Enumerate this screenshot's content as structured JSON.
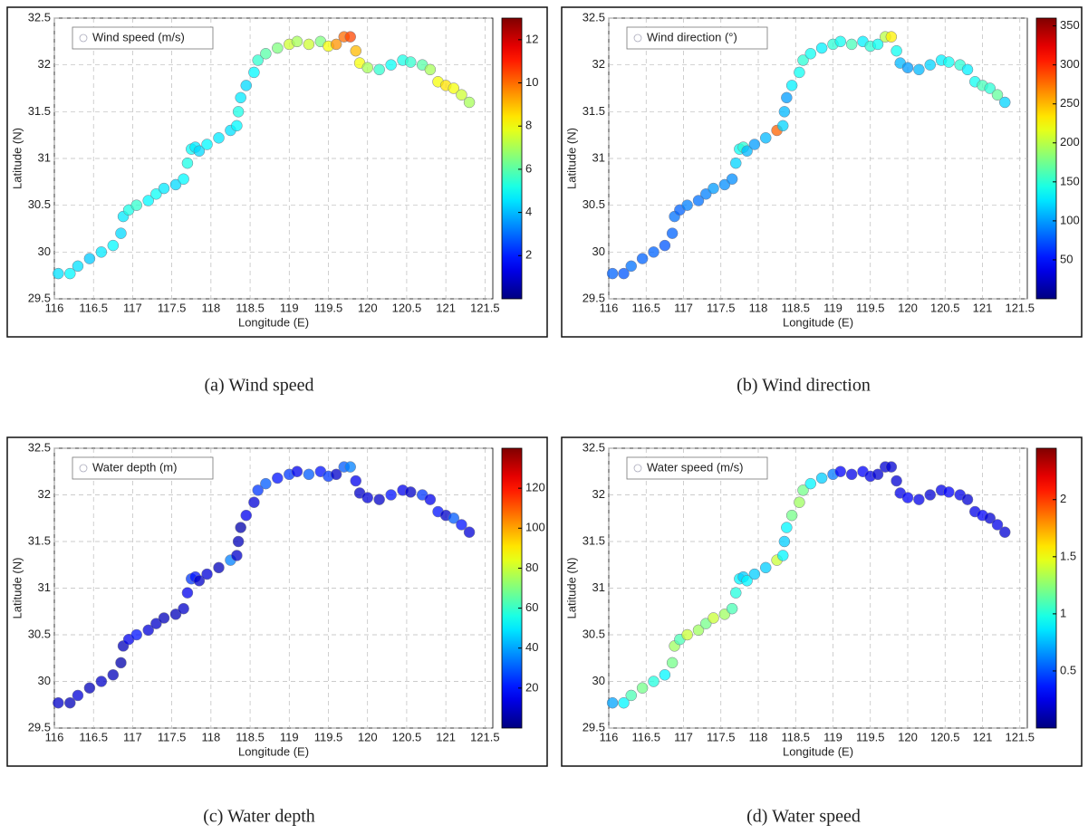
{
  "chart_data": [
    {
      "type": "scatter",
      "legend": "Wind speed (m/s)",
      "xlabel": "Longitude (E)",
      "ylabel": "Latitude (N)",
      "caption": "(a) Wind speed",
      "x": [
        116.05,
        116.2,
        116.3,
        116.45,
        116.6,
        116.75,
        116.85,
        116.88,
        116.95,
        117.05,
        117.2,
        117.3,
        117.4,
        117.55,
        117.65,
        117.7,
        117.75,
        117.8,
        117.85,
        117.95,
        118.1,
        118.25,
        118.33,
        118.35,
        118.38,
        118.45,
        118.55,
        118.6,
        118.7,
        118.85,
        119.0,
        119.1,
        119.25,
        119.4,
        119.5,
        119.6,
        119.7,
        119.78,
        119.85,
        119.9,
        120.0,
        120.15,
        120.3,
        120.45,
        120.55,
        120.7,
        120.8,
        120.9,
        121.0,
        121.1,
        121.2,
        121.3
      ],
      "y": [
        29.77,
        29.77,
        29.85,
        29.93,
        30.0,
        30.07,
        30.2,
        30.38,
        30.45,
        30.5,
        30.55,
        30.62,
        30.68,
        30.72,
        30.78,
        30.95,
        31.1,
        31.12,
        31.08,
        31.15,
        31.22,
        31.3,
        31.35,
        31.5,
        31.65,
        31.78,
        31.92,
        32.05,
        32.12,
        32.18,
        32.22,
        32.25,
        32.22,
        32.25,
        32.2,
        32.22,
        32.3,
        32.3,
        32.15,
        32.02,
        31.97,
        31.95,
        32.0,
        32.05,
        32.03,
        32.0,
        31.95,
        31.82,
        31.78,
        31.75,
        31.68,
        31.6
      ],
      "values": [
        4.5,
        4.8,
        4.5,
        4.2,
        4.6,
        4.8,
        4.4,
        4.6,
        5.2,
        5.5,
        4.8,
        5,
        4.6,
        4.4,
        4.8,
        5.2,
        5,
        4.6,
        4.4,
        4.8,
        4.6,
        4.5,
        4.8,
        5.2,
        4.6,
        4.4,
        4.8,
        5.5,
        6,
        6.5,
        7.5,
        7,
        7.5,
        6.5,
        8,
        9.5,
        10,
        10.5,
        9,
        8,
        7,
        5.5,
        5,
        5.2,
        5.5,
        6,
        7,
        8,
        8.5,
        8,
        7.5,
        7
      ],
      "colormap": "jet",
      "clim": [
        0,
        13
      ],
      "cticks": [
        2,
        4,
        6,
        8,
        10,
        12
      ],
      "xlim": [
        116,
        121.6
      ],
      "ylim": [
        29.5,
        32.5
      ],
      "xticks": [
        116,
        116.5,
        117,
        117.5,
        118,
        118.5,
        119,
        119.5,
        120,
        120.5,
        121,
        121.5
      ],
      "yticks": [
        29.5,
        30,
        30.5,
        31,
        31.5,
        32,
        32.5
      ],
      "grid": true
    },
    {
      "type": "scatter",
      "legend": "Wind direction (°)",
      "xlabel": "Longitude (E)",
      "ylabel": "Latitude (N)",
      "caption": "(b) Wind direction",
      "x": [
        116.05,
        116.2,
        116.3,
        116.45,
        116.6,
        116.75,
        116.85,
        116.88,
        116.95,
        117.05,
        117.2,
        117.3,
        117.4,
        117.55,
        117.65,
        117.7,
        117.75,
        117.8,
        117.85,
        117.95,
        118.1,
        118.25,
        118.33,
        118.35,
        118.38,
        118.45,
        118.55,
        118.6,
        118.7,
        118.85,
        119.0,
        119.1,
        119.25,
        119.4,
        119.5,
        119.6,
        119.7,
        119.78,
        119.85,
        119.9,
        120.0,
        120.15,
        120.3,
        120.45,
        120.55,
        120.7,
        120.8,
        120.9,
        121.0,
        121.1,
        121.2,
        121.3
      ],
      "y": [
        29.77,
        29.77,
        29.85,
        29.93,
        30.0,
        30.07,
        30.2,
        30.38,
        30.45,
        30.5,
        30.55,
        30.62,
        30.68,
        30.72,
        30.78,
        30.95,
        31.1,
        31.12,
        31.08,
        31.15,
        31.22,
        31.3,
        31.35,
        31.5,
        31.65,
        31.78,
        31.92,
        32.05,
        32.12,
        32.18,
        32.22,
        32.25,
        32.22,
        32.25,
        32.2,
        32.22,
        32.3,
        32.3,
        32.15,
        32.02,
        31.97,
        31.95,
        32.0,
        32.05,
        32.03,
        32.0,
        31.95,
        31.82,
        31.78,
        31.75,
        31.68,
        31.6
      ],
      "values": [
        80,
        75,
        85,
        80,
        80,
        75,
        80,
        85,
        80,
        90,
        85,
        90,
        100,
        95,
        95,
        120,
        140,
        150,
        110,
        100,
        110,
        280,
        120,
        110,
        100,
        130,
        140,
        150,
        140,
        130,
        150,
        140,
        160,
        130,
        150,
        140,
        200,
        230,
        140,
        110,
        100,
        110,
        120,
        130,
        140,
        150,
        130,
        140,
        160,
        150,
        170,
        120
      ],
      "colormap": "jet",
      "clim": [
        0,
        360
      ],
      "cticks": [
        50,
        100,
        150,
        200,
        250,
        300,
        350
      ],
      "xlim": [
        116,
        121.6
      ],
      "ylim": [
        29.5,
        32.5
      ],
      "xticks": [
        116,
        116.5,
        117,
        117.5,
        118,
        118.5,
        119,
        119.5,
        120,
        120.5,
        121,
        121.5
      ],
      "yticks": [
        29.5,
        30,
        30.5,
        31,
        31.5,
        32,
        32.5
      ],
      "grid": true
    },
    {
      "type": "scatter",
      "legend": "Water depth (m)",
      "xlabel": "Longitude (E)",
      "ylabel": "Latitude (N)",
      "caption": "(c) Water depth",
      "x": [
        116.05,
        116.2,
        116.3,
        116.45,
        116.6,
        116.75,
        116.85,
        116.88,
        116.95,
        117.05,
        117.2,
        117.3,
        117.4,
        117.55,
        117.65,
        117.7,
        117.75,
        117.8,
        117.85,
        117.95,
        118.1,
        118.25,
        118.33,
        118.35,
        118.38,
        118.45,
        118.55,
        118.6,
        118.7,
        118.85,
        119.0,
        119.1,
        119.25,
        119.4,
        119.5,
        119.6,
        119.7,
        119.78,
        119.85,
        119.9,
        120.0,
        120.15,
        120.3,
        120.45,
        120.55,
        120.7,
        120.8,
        120.9,
        121.0,
        121.1,
        121.2,
        121.3
      ],
      "y": [
        29.77,
        29.77,
        29.85,
        29.93,
        30.0,
        30.07,
        30.2,
        30.38,
        30.45,
        30.5,
        30.55,
        30.62,
        30.68,
        30.72,
        30.78,
        30.95,
        31.1,
        31.12,
        31.08,
        31.15,
        31.22,
        31.3,
        31.35,
        31.5,
        31.65,
        31.78,
        31.92,
        32.05,
        32.12,
        32.18,
        32.22,
        32.25,
        32.22,
        32.25,
        32.2,
        32.22,
        32.3,
        32.3,
        32.15,
        32.02,
        31.97,
        31.95,
        32.0,
        32.05,
        32.03,
        32.0,
        31.95,
        31.82,
        31.78,
        31.75,
        31.68,
        31.6
      ],
      "values": [
        10,
        8,
        12,
        8,
        10,
        8,
        6,
        8,
        15,
        20,
        12,
        10,
        8,
        8,
        10,
        15,
        25,
        20,
        10,
        12,
        8,
        35,
        10,
        8,
        6,
        15,
        12,
        25,
        30,
        20,
        25,
        15,
        30,
        20,
        25,
        10,
        30,
        35,
        15,
        10,
        12,
        10,
        20,
        15,
        10,
        25,
        15,
        20,
        10,
        30,
        20,
        12
      ],
      "colormap": "jet",
      "clim": [
        0,
        140
      ],
      "cticks": [
        20,
        40,
        60,
        80,
        100,
        120
      ],
      "xlim": [
        116,
        121.6
      ],
      "ylim": [
        29.5,
        32.5
      ],
      "xticks": [
        116,
        116.5,
        117,
        117.5,
        118,
        118.5,
        119,
        119.5,
        120,
        120.5,
        121,
        121.5
      ],
      "yticks": [
        29.5,
        30,
        30.5,
        31,
        31.5,
        32,
        32.5
      ],
      "grid": true
    },
    {
      "type": "scatter",
      "legend": "Water speed (m/s)",
      "xlabel": "Longitude (E)",
      "ylabel": "Latitude (N)",
      "caption": "(d) Water speed",
      "x": [
        116.05,
        116.2,
        116.3,
        116.45,
        116.6,
        116.75,
        116.85,
        116.88,
        116.95,
        117.05,
        117.2,
        117.3,
        117.4,
        117.55,
        117.65,
        117.7,
        117.75,
        117.8,
        117.85,
        117.95,
        118.1,
        118.25,
        118.33,
        118.35,
        118.38,
        118.45,
        118.55,
        118.6,
        118.7,
        118.85,
        119.0,
        119.1,
        119.25,
        119.4,
        119.5,
        119.6,
        119.7,
        119.78,
        119.85,
        119.9,
        120.0,
        120.15,
        120.3,
        120.45,
        120.55,
        120.7,
        120.8,
        120.9,
        121.0,
        121.1,
        121.2,
        121.3
      ],
      "y": [
        29.77,
        29.77,
        29.85,
        29.93,
        30.0,
        30.07,
        30.2,
        30.38,
        30.45,
        30.5,
        30.55,
        30.62,
        30.68,
        30.72,
        30.78,
        30.95,
        31.1,
        31.12,
        31.08,
        31.15,
        31.22,
        31.3,
        31.35,
        31.5,
        31.65,
        31.78,
        31.92,
        32.05,
        32.12,
        32.18,
        32.22,
        32.25,
        32.22,
        32.25,
        32.2,
        32.22,
        32.3,
        32.3,
        32.15,
        32.02,
        31.97,
        31.95,
        32.0,
        32.05,
        32.03,
        32.0,
        31.95,
        31.82,
        31.78,
        31.75,
        31.68,
        31.6
      ],
      "values": [
        0.7,
        0.9,
        1.1,
        1.2,
        1.0,
        0.9,
        1.2,
        1.3,
        1.1,
        1.4,
        1.3,
        1.2,
        1.4,
        1.3,
        1.1,
        1.0,
        0.9,
        0.8,
        0.9,
        0.8,
        0.8,
        1.4,
        0.9,
        0.8,
        0.9,
        1.2,
        1.3,
        1.2,
        0.9,
        0.8,
        0.6,
        0.3,
        0.25,
        0.3,
        0.25,
        0.2,
        0.2,
        0.2,
        0.2,
        0.25,
        0.3,
        0.25,
        0.2,
        0.25,
        0.3,
        0.25,
        0.2,
        0.25,
        0.3,
        0.2,
        0.25,
        0.2
      ],
      "colormap": "jet",
      "clim": [
        0,
        2.45
      ],
      "cticks": [
        0.5,
        1,
        1.5,
        2
      ],
      "xlim": [
        116,
        121.6
      ],
      "ylim": [
        29.5,
        32.5
      ],
      "xticks": [
        116,
        116.5,
        117,
        117.5,
        118,
        118.5,
        119,
        119.5,
        120,
        120.5,
        121,
        121.5
      ],
      "yticks": [
        29.5,
        30,
        30.5,
        31,
        31.5,
        32,
        32.5
      ],
      "grid": true
    }
  ]
}
